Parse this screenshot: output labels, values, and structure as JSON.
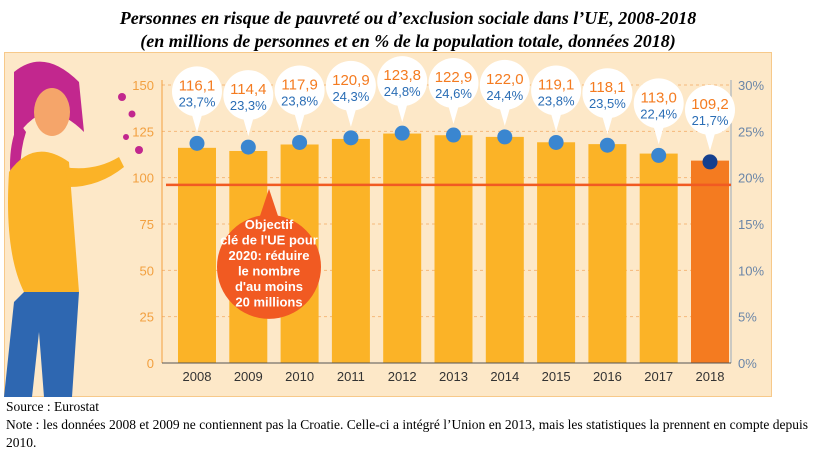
{
  "title_line1": "Personnes en risque de pauvreté ou d’exclusion sociale dans l’UE, 2008-2018",
  "title_line2": "(en millions de personnes et en % de la population totale, données 2018)",
  "chart_data": {
    "type": "bar",
    "categories": [
      "2008",
      "2009",
      "2010",
      "2011",
      "2012",
      "2013",
      "2014",
      "2015",
      "2016",
      "2017",
      "2018"
    ],
    "series": [
      {
        "axis": "left",
        "values": [
          116.1,
          114.4,
          117.9,
          120.9,
          123.8,
          122.9,
          122.0,
          119.1,
          118.1,
          113.0,
          109.2
        ],
        "labels": [
          "116,1",
          "114,4",
          "117,9",
          "120,9",
          "123,8",
          "122,9",
          "122,0",
          "119,1",
          "118,1",
          "113,0",
          "109,2"
        ]
      },
      {
        "axis": "right",
        "type": "scatter",
        "values": [
          23.7,
          23.3,
          23.8,
          24.3,
          24.8,
          24.6,
          24.4,
          23.8,
          23.5,
          22.4,
          21.7
        ],
        "labels": [
          "23,7%",
          "23,3%",
          "23,8%",
          "24,3%",
          "24,8%",
          "24,6%",
          "24,4%",
          "23,8%",
          "23,5%",
          "22,4%",
          "21,7%"
        ]
      }
    ],
    "ylim": [
      0,
      150
    ],
    "yticks": [
      "0",
      "25",
      "50",
      "75",
      "100",
      "125",
      "150"
    ],
    "y2lim": [
      0,
      30
    ],
    "y2ticks": [
      "0%",
      "5%",
      "10%",
      "15%",
      "20%",
      "25%",
      "30%"
    ],
    "target_line": 96.1,
    "annotation": [
      "Objectif",
      "clé de l'UE pour",
      "2020: réduire",
      "le nombre",
      "d'au moins",
      "20 millions"
    ],
    "colors": {
      "bar": "#fbb327",
      "bar_last": "#f47b20",
      "dot": "#3a86d0",
      "dot_last": "#143f8e",
      "value": "#f47b20",
      "pct": "#2a6db5",
      "target": "#f15a22",
      "background": "#fde8c8"
    },
    "grid": true
  },
  "source": "Source : Eurostat",
  "note": "Note : les données 2008 et 2009 ne contiennent pas la Croatie. Celle-ci a intégré l’Union en 2013, mais les statistiques la prennent en compte depuis 2010."
}
